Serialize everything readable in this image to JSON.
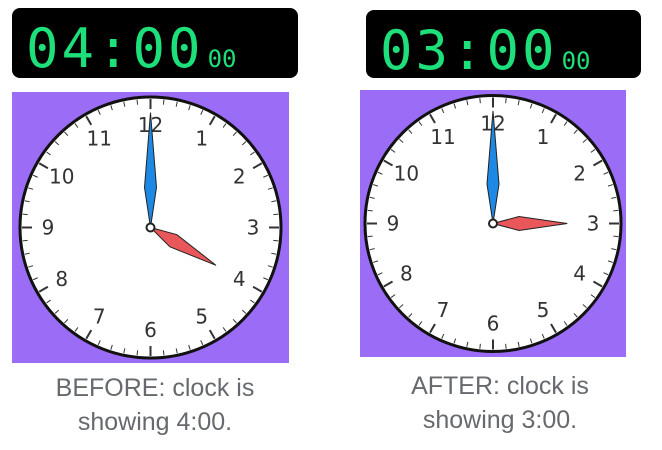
{
  "colors": {
    "digital_bg": "#000000",
    "digital_digits": "#1ee07a",
    "face_background": "#9b6cf5",
    "hour_hand": "#e9575b",
    "minute_hand": "#1e88e5",
    "caption_text": "#666a6e"
  },
  "numerals": [
    "12",
    "1",
    "2",
    "3",
    "4",
    "5",
    "6",
    "7",
    "8",
    "9",
    "10",
    "11"
  ],
  "before": {
    "digital": {
      "time": "04:00",
      "seconds": "00"
    },
    "clock": {
      "hour": 4,
      "minute": 0
    },
    "caption_line1": "BEFORE: clock is",
    "caption_line2": "showing 4:00."
  },
  "after": {
    "digital": {
      "time": "03:00",
      "seconds": "00"
    },
    "clock": {
      "hour": 3,
      "minute": 0
    },
    "caption_line1": "AFTER: clock is",
    "caption_line2": "showing 3:00."
  }
}
